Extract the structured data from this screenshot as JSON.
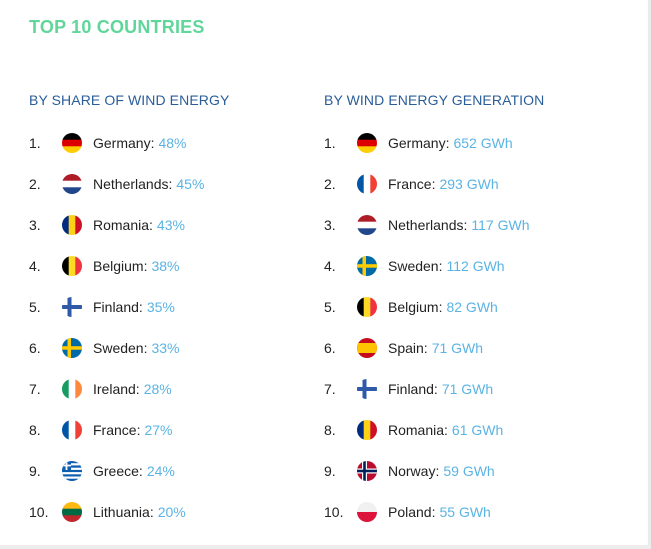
{
  "title": "TOP 10 COUNTRIES",
  "left": {
    "header": "BY SHARE OF WIND ENERGY",
    "items": [
      {
        "rank": "1.",
        "country": "Germany:",
        "value": "48%",
        "flag": "germany-flag-icon"
      },
      {
        "rank": "2.",
        "country": "Netherlands:",
        "value": "45%",
        "flag": "netherlands-flag-icon"
      },
      {
        "rank": "3.",
        "country": "Romania:",
        "value": "43%",
        "flag": "romania-flag-icon"
      },
      {
        "rank": "4.",
        "country": "Belgium:",
        "value": "38%",
        "flag": "belgium-flag-icon"
      },
      {
        "rank": "5.",
        "country": "Finland:",
        "value": "35%",
        "flag": "finland-flag-icon"
      },
      {
        "rank": "6.",
        "country": "Sweden:",
        "value": "33%",
        "flag": "sweden-flag-icon"
      },
      {
        "rank": "7.",
        "country": "Ireland:",
        "value": "28%",
        "flag": "ireland-flag-icon"
      },
      {
        "rank": "8.",
        "country": "France:",
        "value": "27%",
        "flag": "france-flag-icon"
      },
      {
        "rank": "9.",
        "country": "Greece:",
        "value": "24%",
        "flag": "greece-flag-icon"
      },
      {
        "rank": "10.",
        "country": "Lithuania:",
        "value": "20%",
        "flag": "lithuania-flag-icon"
      }
    ]
  },
  "right": {
    "header": "BY WIND ENERGY GENERATION",
    "items": [
      {
        "rank": "1.",
        "country": "Germany:",
        "value": "652 GWh",
        "flag": "germany-flag-icon"
      },
      {
        "rank": "2.",
        "country": "France:",
        "value": "293 GWh",
        "flag": "france-flag-icon"
      },
      {
        "rank": "3.",
        "country": "Netherlands:",
        "value": "117 GWh",
        "flag": "netherlands-flag-icon"
      },
      {
        "rank": "4.",
        "country": "Sweden:",
        "value": "112 GWh",
        "flag": "sweden-flag-icon"
      },
      {
        "rank": "5.",
        "country": "Belgium:",
        "value": "82 GWh",
        "flag": "belgium-flag-icon"
      },
      {
        "rank": "6.",
        "country": "Spain:",
        "value": "71 GWh",
        "flag": "spain-flag-icon"
      },
      {
        "rank": "7.",
        "country": "Finland:",
        "value": "71 GWh",
        "flag": "finland-flag-icon"
      },
      {
        "rank": "8.",
        "country": "Romania:",
        "value": "61 GWh",
        "flag": "romania-flag-icon"
      },
      {
        "rank": "9.",
        "country": "Norway:",
        "value": "59 GWh",
        "flag": "norway-flag-icon"
      },
      {
        "rank": "10.",
        "country": "Poland:",
        "value": "55 GWh",
        "flag": "poland-flag-icon"
      }
    ]
  },
  "colors": {
    "title": "#5fd69a",
    "header": "#2a5d99",
    "value": "#5ab3e3"
  }
}
